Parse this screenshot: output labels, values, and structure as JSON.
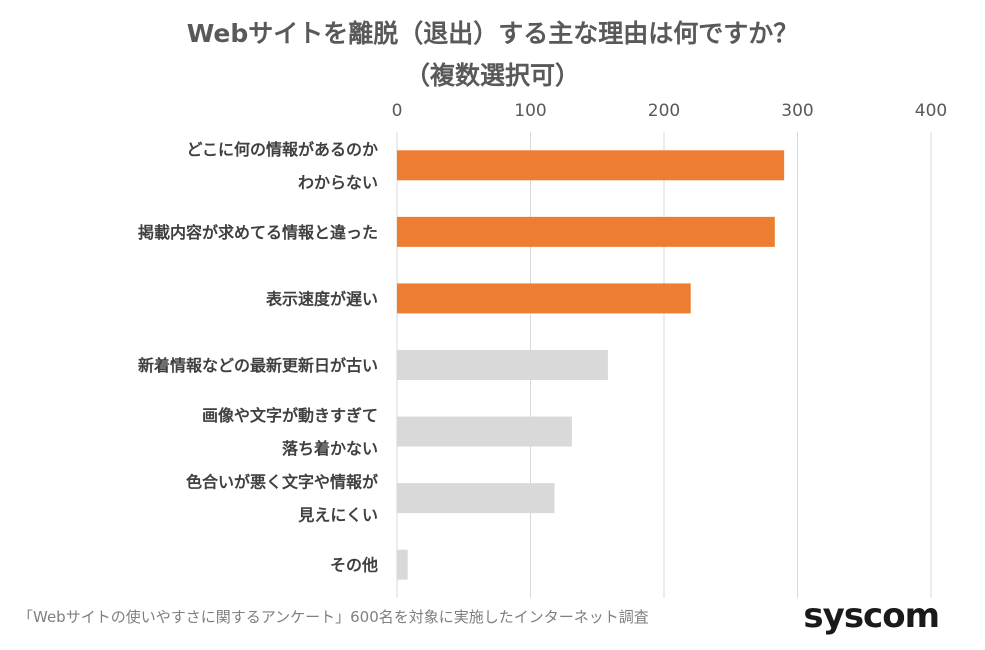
{
  "chart_data": {
    "type": "bar",
    "orientation": "horizontal",
    "title": "Webサイトを離脱（退出）する主な理由は何ですか？",
    "subtitle": "（複数選択可）",
    "xlim": [
      0,
      400
    ],
    "ticks": [
      "0",
      "100",
      "200",
      "300",
      "400"
    ],
    "tick_values": [
      0,
      100,
      200,
      300,
      400
    ],
    "grid": true,
    "categories": [
      [
        "どこに何の情報があるのか",
        "わからない"
      ],
      [
        "掲載内容が求めてる情報と違った"
      ],
      [
        "表示速度が遅い"
      ],
      [
        "新着情報などの最新更新日が古い"
      ],
      [
        "画像や文字が動きすぎて",
        "落ち着かない"
      ],
      [
        "色合いが悪く文字や情報が",
        "見えにくい"
      ],
      [
        "その他"
      ]
    ],
    "values": [
      290,
      283,
      220,
      158,
      131,
      118,
      8
    ],
    "colors": [
      "#ed7d31",
      "#ed7d31",
      "#ed7d31",
      "#d9d9d9",
      "#d9d9d9",
      "#d9d9d9",
      "#d9d9d9"
    ]
  },
  "footnote": "「Webサイトの使いやすさに関するアンケート」600名を対象に実施したインターネット調査",
  "logo": "syscom"
}
